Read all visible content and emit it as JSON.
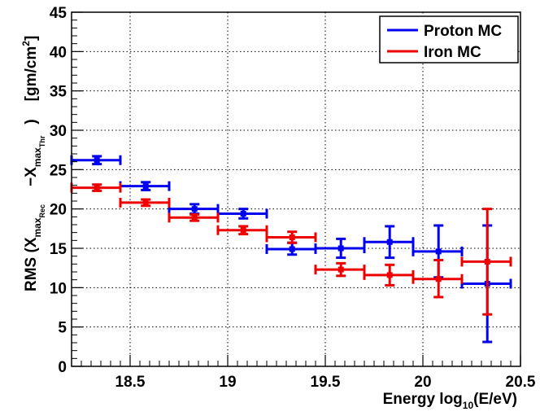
{
  "chart_data": {
    "type": "scatter",
    "title": "",
    "xlabel": "Energy  log10(E/eV)",
    "xlabel_parts": {
      "main": "Energy  log",
      "sub": "10",
      "tail": "(E/eV)"
    },
    "ylabel": "RMS (Xmax_Rec −Xmax_Thr)  [gm/cm2]",
    "ylabel_parts": {
      "prefix": "RMS (X",
      "max1": "max",
      "rec": "Rec",
      "minus": "−X",
      "max2": "max",
      "thr": "Thr",
      "close": ")",
      "unit": "[gm/cm",
      "unit_sup": "2",
      "unit_close": "]"
    },
    "xlim": [
      18.2,
      20.5
    ],
    "ylim": [
      0,
      45
    ],
    "x_ticks": [
      18.5,
      19,
      19.5,
      20,
      20.5
    ],
    "x_tick_labels": [
      "18.5",
      "19",
      "19.5",
      "20",
      "20.5"
    ],
    "y_ticks": [
      0,
      5,
      10,
      15,
      20,
      25,
      30,
      35,
      40,
      45
    ],
    "y_tick_labels": [
      "0",
      "5",
      "10",
      "15",
      "20",
      "25",
      "30",
      "35",
      "40",
      "45"
    ],
    "grid": true,
    "legend_position": "top-right",
    "series": [
      {
        "name": "Proton MC",
        "color": "#0000ee",
        "points": [
          {
            "x": 18.33,
            "xlo": 18.2,
            "xhi": 18.45,
            "y": 26.2,
            "ylo": 25.7,
            "yhi": 26.7
          },
          {
            "x": 18.58,
            "xlo": 18.45,
            "xhi": 18.7,
            "y": 22.9,
            "ylo": 22.4,
            "yhi": 23.4
          },
          {
            "x": 18.83,
            "xlo": 18.7,
            "xhi": 18.95,
            "y": 20.0,
            "ylo": 19.4,
            "yhi": 20.6
          },
          {
            "x": 19.08,
            "xlo": 18.95,
            "xhi": 19.2,
            "y": 19.4,
            "ylo": 18.8,
            "yhi": 20.0
          },
          {
            "x": 19.33,
            "xlo": 19.2,
            "xhi": 19.45,
            "y": 14.9,
            "ylo": 14.2,
            "yhi": 15.7
          },
          {
            "x": 19.58,
            "xlo": 19.45,
            "xhi": 19.7,
            "y": 15.0,
            "ylo": 13.8,
            "yhi": 16.2
          },
          {
            "x": 19.83,
            "xlo": 19.7,
            "xhi": 19.95,
            "y": 15.8,
            "ylo": 13.8,
            "yhi": 17.8
          },
          {
            "x": 20.08,
            "xlo": 19.95,
            "xhi": 20.2,
            "y": 14.6,
            "ylo": 11.3,
            "yhi": 17.9
          },
          {
            "x": 20.33,
            "xlo": 20.2,
            "xhi": 20.45,
            "y": 10.5,
            "ylo": 3.1,
            "yhi": 17.9
          }
        ]
      },
      {
        "name": "Iron MC",
        "color": "#ee0000",
        "points": [
          {
            "x": 18.33,
            "xlo": 18.2,
            "xhi": 18.45,
            "y": 22.7,
            "ylo": 22.3,
            "yhi": 23.1
          },
          {
            "x": 18.58,
            "xlo": 18.45,
            "xhi": 18.7,
            "y": 20.8,
            "ylo": 20.4,
            "yhi": 21.2
          },
          {
            "x": 18.83,
            "xlo": 18.7,
            "xhi": 18.95,
            "y": 18.9,
            "ylo": 18.5,
            "yhi": 19.3
          },
          {
            "x": 19.08,
            "xlo": 18.95,
            "xhi": 19.2,
            "y": 17.3,
            "ylo": 16.8,
            "yhi": 17.8
          },
          {
            "x": 19.33,
            "xlo": 19.2,
            "xhi": 19.45,
            "y": 16.4,
            "ylo": 15.7,
            "yhi": 17.1
          },
          {
            "x": 19.58,
            "xlo": 19.45,
            "xhi": 19.7,
            "y": 12.3,
            "ylo": 11.5,
            "yhi": 13.1
          },
          {
            "x": 19.83,
            "xlo": 19.7,
            "xhi": 19.95,
            "y": 11.6,
            "ylo": 10.3,
            "yhi": 12.9
          },
          {
            "x": 20.08,
            "xlo": 19.95,
            "xhi": 20.2,
            "y": 11.1,
            "ylo": 8.8,
            "yhi": 13.5
          },
          {
            "x": 20.33,
            "xlo": 20.2,
            "xhi": 20.45,
            "y": 13.3,
            "ylo": 6.6,
            "yhi": 20.0
          }
        ]
      }
    ]
  }
}
